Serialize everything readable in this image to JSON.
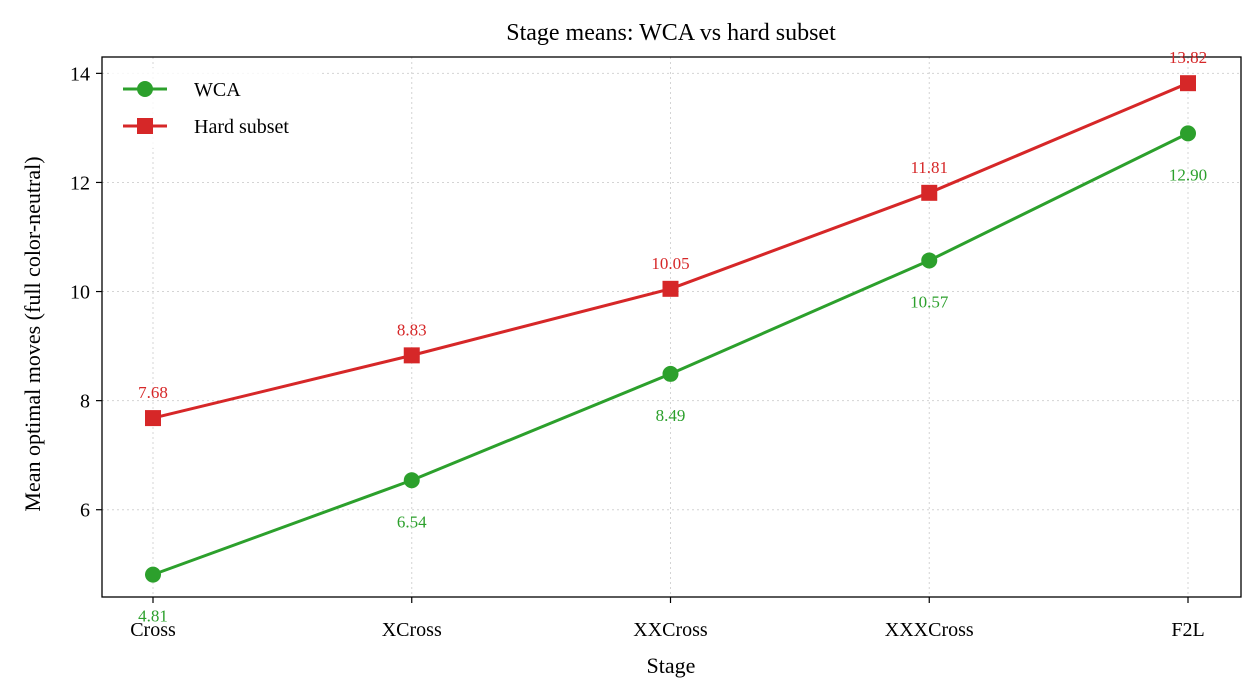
{
  "chart_data": {
    "type": "line",
    "title": "Stage means: WCA vs hard subset",
    "xlabel": "Stage",
    "ylabel": "Mean optimal moves (full color-neutral)",
    "categories": [
      "Cross",
      "XCross",
      "XXCross",
      "XXXCross",
      "F2L"
    ],
    "yticks": [
      "6",
      "8",
      "10",
      "12",
      "14"
    ],
    "ylim": [
      4.4,
      14.3
    ],
    "grid": true,
    "legend_position": "top-left",
    "series": [
      {
        "name": "WCA",
        "color": "#2ca02c",
        "marker": "circle",
        "values": [
          4.81,
          6.54,
          8.49,
          10.57,
          12.9
        ],
        "labels": [
          "4.81",
          "6.54",
          "8.49",
          "10.57",
          "12.90"
        ],
        "label_position": "below"
      },
      {
        "name": "Hard subset",
        "color": "#d62728",
        "marker": "square",
        "values": [
          7.68,
          8.83,
          10.05,
          11.81,
          13.82
        ],
        "labels": [
          "7.68",
          "8.83",
          "10.05",
          "11.81",
          "13.82"
        ],
        "label_position": "above"
      }
    ]
  }
}
